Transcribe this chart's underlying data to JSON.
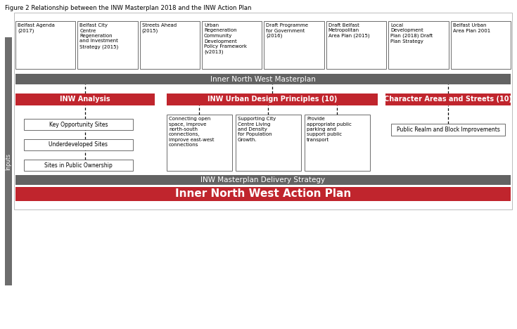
{
  "title": "Figure 2 Relationship between the INW Masterplan 2018 and the INW Action Plan",
  "bg_color": "#ffffff",
  "dark_bar_color": "#636363",
  "red_color": "#c0252d",
  "top_boxes": [
    "Belfast Agenda\n(2017)",
    "Belfast City\nCentre\nRegeneration\nand Investment\nStrategy (2015)",
    "Streets Ahead\n(2015)",
    "Urban\nRegeneration\nCommunity\nDevelopment\nPolicy Framework\n(v2013)",
    "Draft Programme\nfor Government\n(2016)",
    "Draft Belfast\nMetropolitan\nArea Plan (2015)",
    "Local\nDevelopment\nPlan (2018) Draft\nPlan Strategy",
    "Belfast Urban\nArea Plan 2001"
  ],
  "masterplan_bar": "Inner North West Masterplan",
  "red_boxes": [
    "INW Analysis",
    "INW Urban Design Principles (10)",
    "Character Areas and Streets (10)"
  ],
  "left_sub_boxes": [
    "Key Opportunity Sites",
    "Underdeveloped Sites",
    "Sites in Public Ownership"
  ],
  "mid_sub_boxes": [
    "Connecting open\nspace, improve\nnorth-south\nconnections,\nimprove east-west\nconnections",
    "Supporting City\nCentre Living\nand Density\nfor Population\nGrowth.",
    "Provide\nappropriate public\nparking and\nsupport public\ntransport"
  ],
  "right_sub_box": "Public Realm and Block Improvements",
  "delivery_bar": "INW Masterplan Delivery Strategy",
  "action_plan_bar": "Inner North West Action Plan",
  "inputs_label": "Inputs",
  "inputs_bar_color": "#6d6d6d"
}
